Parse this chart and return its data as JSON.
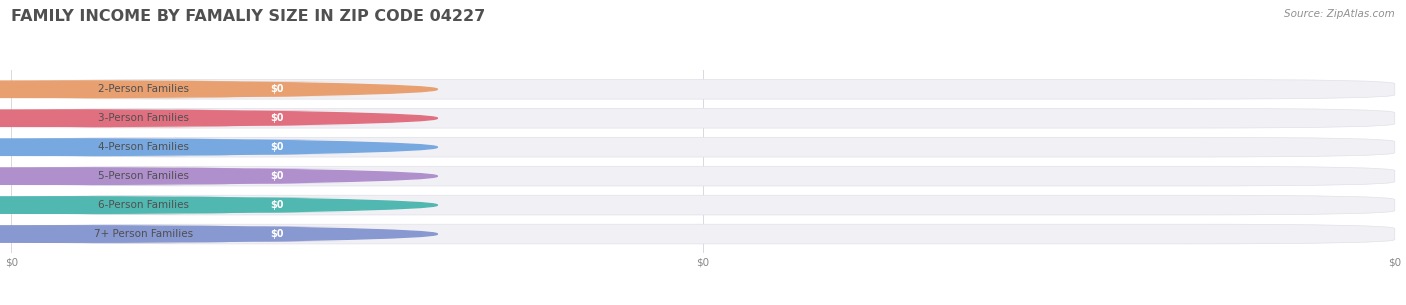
{
  "title": "FAMILY INCOME BY FAMALIY SIZE IN ZIP CODE 04227",
  "source": "Source: ZipAtlas.com",
  "categories": [
    "2-Person Families",
    "3-Person Families",
    "4-Person Families",
    "5-Person Families",
    "6-Person Families",
    "7+ Person Families"
  ],
  "values": [
    0,
    0,
    0,
    0,
    0,
    0
  ],
  "bar_colors": [
    "#f5c6a0",
    "#f5a0a8",
    "#a8c8f0",
    "#ccb8e8",
    "#7ecec8",
    "#b0bce8"
  ],
  "circle_colors": [
    "#e8a070",
    "#e07080",
    "#78a8e0",
    "#b090cc",
    "#50b8b0",
    "#8898d0"
  ],
  "value_label_colors": [
    "#e8a878",
    "#e88898",
    "#88aee0",
    "#b898d8",
    "#60c0b8",
    "#9898cc"
  ],
  "value_labels": [
    "$0",
    "$0",
    "$0",
    "$0",
    "$0",
    "$0"
  ],
  "bg_color": "#ffffff",
  "bar_bg_color": "#f0f0f5",
  "title_color": "#505050",
  "label_color": "#505050",
  "title_fontsize": 11.5,
  "label_fontsize": 7.5,
  "source_fontsize": 7.5,
  "source_color": "#909090",
  "x_tick_positions": [
    0.0,
    0.5,
    1.0
  ],
  "x_tick_labels": [
    "$0",
    "$0",
    "$0"
  ]
}
